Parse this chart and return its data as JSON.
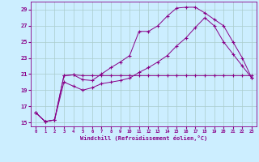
{
  "xlabel": "Windchill (Refroidissement éolien,°C)",
  "background_color": "#cceeff",
  "grid_color": "#aacccc",
  "line_color": "#880088",
  "xlim": [
    -0.5,
    23.5
  ],
  "ylim": [
    14.5,
    30.0
  ],
  "yticks": [
    15,
    17,
    19,
    21,
    23,
    25,
    27,
    29
  ],
  "xticks": [
    0,
    1,
    2,
    3,
    4,
    5,
    6,
    7,
    8,
    9,
    10,
    11,
    12,
    13,
    14,
    15,
    16,
    17,
    18,
    19,
    20,
    21,
    22,
    23
  ],
  "series_flat_x": [
    0,
    1,
    2,
    3,
    4,
    5,
    6,
    7,
    8,
    9,
    10,
    11,
    12,
    13,
    14,
    15,
    16,
    17,
    18,
    19,
    20,
    21,
    22,
    23
  ],
  "series_flat_y": [
    16.2,
    15.1,
    15.3,
    20.8,
    20.9,
    20.8,
    20.8,
    20.8,
    20.8,
    20.8,
    20.8,
    20.8,
    20.8,
    20.8,
    20.8,
    20.8,
    20.8,
    20.8,
    20.8,
    20.8,
    20.8,
    20.8,
    20.8,
    20.8
  ],
  "series_high_x": [
    0,
    1,
    2,
    3,
    4,
    5,
    6,
    7,
    8,
    9,
    10,
    11,
    12,
    13,
    14,
    15,
    16,
    17,
    18,
    19,
    20,
    21,
    22,
    23
  ],
  "series_high_y": [
    16.2,
    15.1,
    15.3,
    20.8,
    20.9,
    20.3,
    20.2,
    21.0,
    21.8,
    22.5,
    23.3,
    26.3,
    26.3,
    27.0,
    28.2,
    29.2,
    29.3,
    29.3,
    28.6,
    27.8,
    27.0,
    25.0,
    23.0,
    20.5
  ],
  "series_diag_x": [
    0,
    1,
    2,
    3,
    4,
    5,
    6,
    7,
    8,
    9,
    10,
    11,
    12,
    13,
    14,
    15,
    16,
    17,
    18,
    19,
    20,
    21,
    22,
    23
  ],
  "series_diag_y": [
    16.2,
    15.1,
    15.3,
    20.0,
    19.5,
    19.0,
    19.3,
    19.8,
    20.0,
    20.2,
    20.5,
    21.2,
    21.8,
    22.5,
    23.3,
    24.5,
    25.5,
    26.8,
    28.0,
    27.0,
    25.0,
    23.5,
    22.0,
    20.5
  ]
}
